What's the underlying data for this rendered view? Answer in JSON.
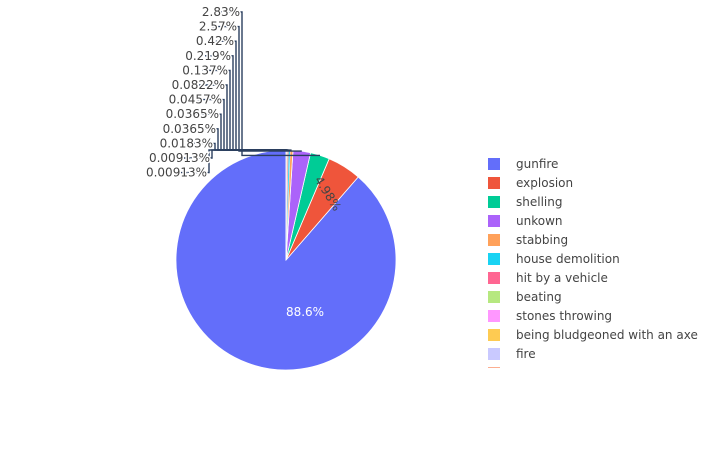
{
  "chart_data": {
    "type": "pie",
    "title": "",
    "slices": [
      {
        "label": "gunfire",
        "value": 88.6,
        "text": "88.6%",
        "color": "#636efa"
      },
      {
        "label": "explosion",
        "value": 4.98,
        "text": "4.98%",
        "color": "#EF553B"
      },
      {
        "label": "shelling",
        "value": 2.83,
        "text": "2.83%",
        "color": "#00cc96"
      },
      {
        "label": "unkown",
        "value": 2.57,
        "text": "2.57%",
        "color": "#ab63fa"
      },
      {
        "label": "stabbing",
        "value": 0.42,
        "text": "0.42%",
        "color": "#FFA15A"
      },
      {
        "label": "house demolition",
        "value": 0.219,
        "text": "0.219%",
        "color": "#19d3f3"
      },
      {
        "label": "hit by a vehicle",
        "value": 0.137,
        "text": "0.137%",
        "color": "#FF6692"
      },
      {
        "label": "beating",
        "value": 0.0822,
        "text": "0.0822%",
        "color": "#B6E880"
      },
      {
        "label": "stones throwing",
        "value": 0.0457,
        "text": "0.0457%",
        "color": "#FF97FF"
      },
      {
        "label": "being bludgeoned with an axe",
        "value": 0.0365,
        "text": "0.0365%",
        "color": "#FECB52"
      },
      {
        "label": "fire",
        "value": 0.0365,
        "text": "0.0365%",
        "color": "#c9c9ff"
      },
      {
        "label": "",
        "value": 0.0183,
        "text": "0.0183%",
        "color": "#fcae91"
      },
      {
        "label": "",
        "value": 0.00913,
        "text": "0.00913%",
        "color": "#636efa"
      },
      {
        "label": "",
        "value": 0.00913,
        "text": "0.00913%",
        "color": "#EF553B"
      }
    ],
    "legend_position": "right",
    "text_color_inside": "#ffffff",
    "text_color_outside": "#444444",
    "connector_color": "#2a3f5f"
  }
}
